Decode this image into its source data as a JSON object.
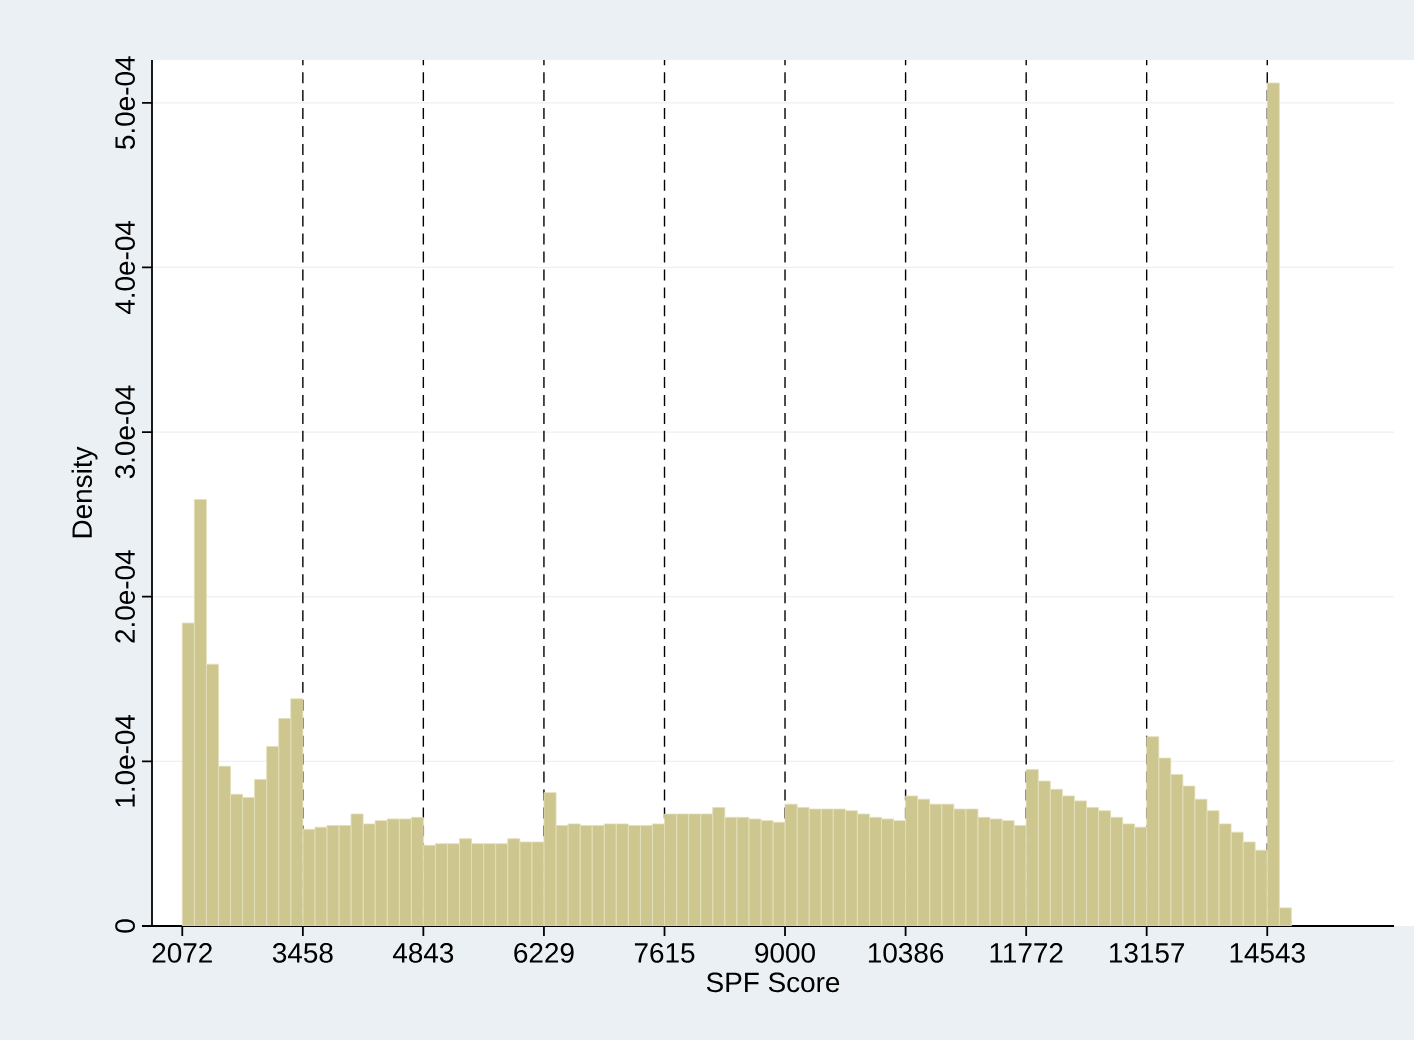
{
  "chart_data": {
    "type": "histogram",
    "xlabel": "SPF Score",
    "ylabel": "Density",
    "color": "#cdc68e",
    "bins": [
      2072,
      2211,
      2349,
      2488,
      2626,
      2765,
      2903,
      3042,
      3181,
      3319,
      3458,
      3597,
      3735,
      3874,
      4012,
      4151,
      4289,
      4428,
      4567,
      4705,
      4843,
      4982,
      5120,
      5259,
      5397,
      5536,
      5674,
      5813,
      5952,
      6090,
      6229,
      6368,
      6506,
      6645,
      6783,
      6922,
      7060,
      7199,
      7338,
      7476,
      7615,
      7754,
      7892,
      8031,
      8169,
      8308,
      8446,
      8585,
      8724,
      8862,
      9000,
      9139,
      9277,
      9416,
      9554,
      9693,
      9831,
      9970,
      10109,
      10247,
      10386,
      10525,
      10663,
      10802,
      10940,
      11079,
      11217,
      11356,
      11495,
      11633,
      11772,
      11911,
      12049,
      12188,
      12326,
      12465,
      12603,
      12742,
      12881,
      13019,
      13157,
      13296,
      13434,
      13573,
      13711,
      13850,
      13988,
      14127,
      14266,
      14404,
      14543,
      14682,
      14820
    ],
    "values": [
      0.000184,
      0.000259,
      0.000159,
      9.7e-05,
      8e-05,
      7.8e-05,
      8.9e-05,
      0.000109,
      0.000126,
      0.000138,
      5.87e-05,
      6e-05,
      6.1e-05,
      6.1e-05,
      6.8e-05,
      6.2e-05,
      6.4e-05,
      6.5e-05,
      6.5e-05,
      6.6e-05,
      4.9e-05,
      5e-05,
      5e-05,
      5.3e-05,
      5e-05,
      5e-05,
      5e-05,
      5.3e-05,
      5.1e-05,
      5.1e-05,
      8.1e-05,
      6.1e-05,
      6.2e-05,
      6.1e-05,
      6.1e-05,
      6.2e-05,
      6.2e-05,
      6.1e-05,
      6.1e-05,
      6.2e-05,
      6.8e-05,
      6.8e-05,
      6.8e-05,
      6.8e-05,
      7.2e-05,
      6.6e-05,
      6.6e-05,
      6.5e-05,
      6.4e-05,
      6.3e-05,
      7.4e-05,
      7.2e-05,
      7.1e-05,
      7.1e-05,
      7.1e-05,
      7e-05,
      6.8e-05,
      6.6e-05,
      6.5e-05,
      6.4e-05,
      7.9e-05,
      7.7e-05,
      7.4e-05,
      7.4e-05,
      7.1e-05,
      7.1e-05,
      6.6e-05,
      6.5e-05,
      6.4e-05,
      6.1e-05,
      9.5e-05,
      8.8e-05,
      8.3e-05,
      7.9e-05,
      7.6e-05,
      7.2e-05,
      7e-05,
      6.6e-05,
      6.2e-05,
      6e-05,
      0.000115,
      0.000102,
      9.2e-05,
      8.5e-05,
      7.7e-05,
      7e-05,
      6.2e-05,
      5.7e-05,
      5.1e-05,
      4.6e-05,
      0.000512,
      1.1e-05
    ],
    "xlim": [
      1724,
      16000
    ],
    "xticks": [
      2072,
      3458,
      4843,
      6229,
      7615,
      9000,
      10386,
      11772,
      13157,
      14543
    ],
    "ylim": [
      0,
      0.000526
    ],
    "yticks": [
      0,
      {
        "value": 0.0001,
        "label": "1.0e-04"
      },
      {
        "value": 0.0002,
        "label": "2.0e-04"
      },
      {
        "value": 0.0003,
        "label": "3.0e-04"
      },
      {
        "value": 0.0004,
        "label": "4.0e-04"
      },
      {
        "value": 0.0005,
        "label": "5.0e-04"
      }
    ],
    "grid": "y",
    "ref_lines": [
      {
        "axis": "x",
        "value": 3458,
        "color": "#000000",
        "line_style": "dashed"
      },
      {
        "axis": "x",
        "value": 4843,
        "color": "#000000",
        "line_style": "dashed"
      },
      {
        "axis": "x",
        "value": 6229,
        "color": "#000000",
        "line_style": "dashed"
      },
      {
        "axis": "x",
        "value": 7615,
        "color": "#000000",
        "line_style": "dashed"
      },
      {
        "axis": "x",
        "value": 9000,
        "color": "#000000",
        "line_style": "dashed"
      },
      {
        "axis": "x",
        "value": 10386,
        "color": "#000000",
        "line_style": "dashed"
      },
      {
        "axis": "x",
        "value": 11772,
        "color": "#000000",
        "line_style": "dashed"
      },
      {
        "axis": "x",
        "value": 13157,
        "color": "#000000",
        "line_style": "dashed"
      },
      {
        "axis": "x",
        "value": 14543,
        "color": "#000000",
        "line_style": "dashed"
      }
    ]
  }
}
